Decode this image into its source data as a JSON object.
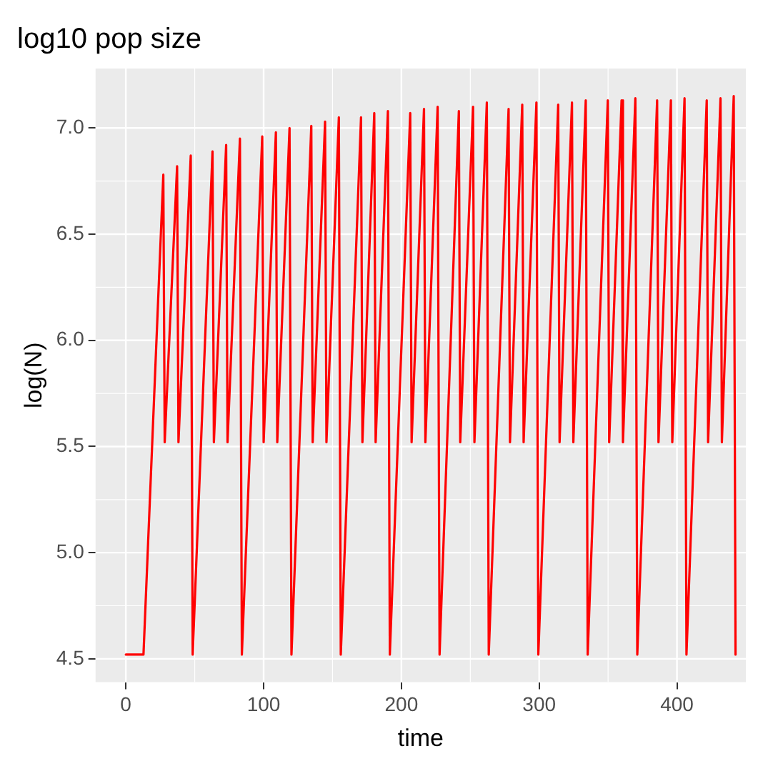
{
  "chart_data": {
    "type": "line",
    "title": "log10 pop size",
    "xlabel": "time",
    "ylabel": "log(N)",
    "xlim": [
      -22,
      450
    ],
    "xticks": [
      0,
      100,
      200,
      300,
      400
    ],
    "ylim": [
      4.39,
      7.28
    ],
    "yticks": [
      {
        "value": 4.5,
        "label": "4.5"
      },
      {
        "value": 5,
        "label": "5.0"
      },
      {
        "value": 5.5,
        "label": "5.5"
      },
      {
        "value": 6,
        "label": "6.0"
      },
      {
        "value": 6.5,
        "label": "6.5"
      },
      {
        "value": 7,
        "label": "7.0"
      }
    ],
    "grid": true,
    "legend": false,
    "marker": "none",
    "line_style": "solid",
    "series": [
      {
        "color": "#ff0000",
        "x": [
          0,
          12.8,
          27.2,
          28.2,
          37.2,
          38.2,
          47.1,
          48.5,
          62.9,
          63.9,
          72.8,
          73.8,
          82.8,
          84.2,
          99,
          100,
          108.9,
          109.9,
          118.8,
          120.2,
          134.6,
          135.6,
          144.6,
          145.6,
          154.6,
          156,
          170.7,
          171.7,
          180.3,
          181.3,
          190.2,
          191.6,
          206.4,
          207.4,
          216.4,
          217.4,
          226.3,
          227.7,
          241.7,
          242.7,
          252,
          253,
          262,
          263.4,
          277.8,
          278.8,
          287.7,
          288.7,
          298,
          299.4,
          313.8,
          314.8,
          323.8,
          324.8,
          333.8,
          335.2,
          349.8,
          350.8,
          359.8,
          360.8,
          369.8,
          371.2,
          385.6,
          386.6,
          395.6,
          396.6,
          405.5,
          406.9,
          421.6,
          422.6,
          431.6,
          432.6,
          441.2,
          442.5
        ],
        "values": [
          4.52,
          4.52,
          6.78,
          5.52,
          6.82,
          5.52,
          6.87,
          4.52,
          6.89,
          5.52,
          6.92,
          5.52,
          6.95,
          4.52,
          6.96,
          5.52,
          6.98,
          5.52,
          7.0,
          4.52,
          7.01,
          5.52,
          7.03,
          5.52,
          7.05,
          4.52,
          7.05,
          5.52,
          7.07,
          5.52,
          7.08,
          4.52,
          7.07,
          5.52,
          7.09,
          5.52,
          7.1,
          4.52,
          7.08,
          5.52,
          7.1,
          5.52,
          7.12,
          4.52,
          7.09,
          5.52,
          7.11,
          5.52,
          7.12,
          4.52,
          7.11,
          5.52,
          7.12,
          5.52,
          7.13,
          4.52,
          7.13,
          5.52,
          7.13,
          5.52,
          7.14,
          4.52,
          7.13,
          5.52,
          7.13,
          5.52,
          7.14,
          4.52,
          7.13,
          5.52,
          7.14,
          5.52,
          7.15,
          4.52
        ]
      }
    ]
  }
}
